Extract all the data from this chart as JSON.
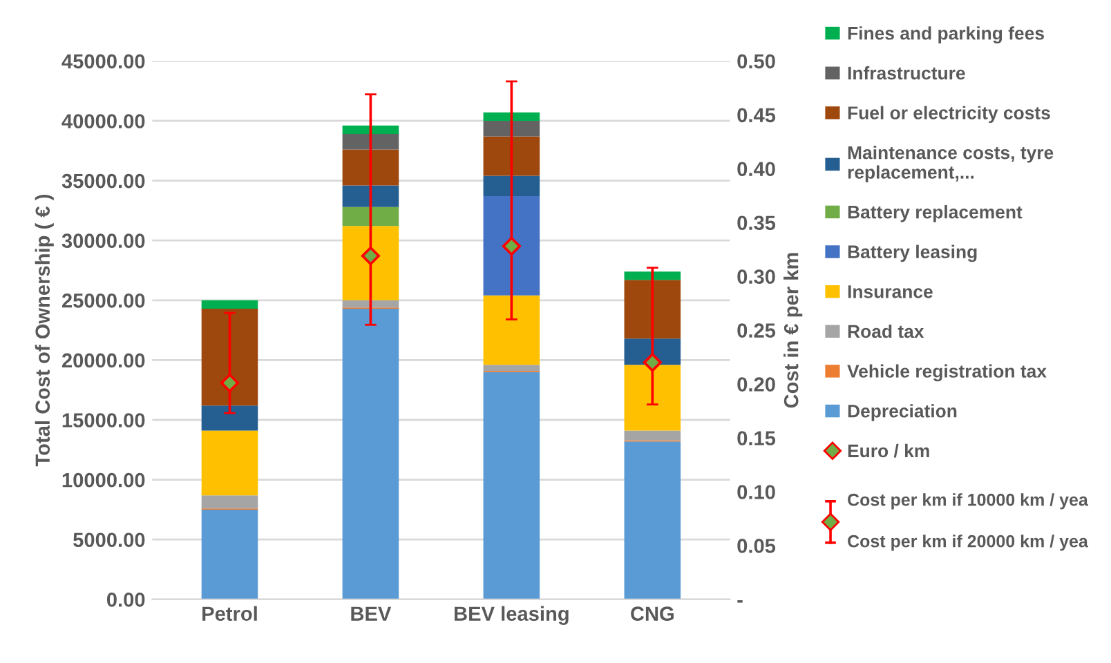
{
  "chart_data": {
    "type": "bar",
    "stacked": true,
    "categories": [
      "Petrol",
      "BEV",
      "BEV leasing",
      "CNG"
    ],
    "ylabel": "Total Cost of Ownership ( € )",
    "y2label": "Cost in € per km",
    "ylim": [
      0,
      45000
    ],
    "yticks": [
      {
        "value": 0,
        "label": "0.00"
      },
      {
        "value": 5000,
        "label": "5000.00"
      },
      {
        "value": 10000,
        "label": "10000.00"
      },
      {
        "value": 15000,
        "label": "15000.00"
      },
      {
        "value": 20000,
        "label": "20000.00"
      },
      {
        "value": 25000,
        "label": "25000.00"
      },
      {
        "value": 30000,
        "label": "30000.00"
      },
      {
        "value": 35000,
        "label": "35000.00"
      },
      {
        "value": 40000,
        "label": "40000.00"
      },
      {
        "value": 45000,
        "label": "45000.00"
      }
    ],
    "y2lim": [
      0,
      0.5
    ],
    "y2ticks": [
      {
        "value": 0,
        "label": "-"
      },
      {
        "value": 0.05,
        "label": "0.05"
      },
      {
        "value": 0.1,
        "label": "0.10"
      },
      {
        "value": 0.15,
        "label": "0.15"
      },
      {
        "value": 0.2,
        "label": "0.20"
      },
      {
        "value": 0.25,
        "label": "0.25"
      },
      {
        "value": 0.3,
        "label": "0.30"
      },
      {
        "value": 0.35,
        "label": "0.35"
      },
      {
        "value": 0.4,
        "label": "0.40"
      },
      {
        "value": 0.45,
        "label": "0.45"
      },
      {
        "value": 0.5,
        "label": "0.50"
      }
    ],
    "grid": "y",
    "legend": "right",
    "series": [
      {
        "name": "Depreciation",
        "color": "#5b9bd5",
        "values": [
          7500,
          24300,
          19000,
          13200
        ]
      },
      {
        "name": "Vehicle registration tax",
        "color": "#ed7d31",
        "values": [
          100,
          100,
          100,
          100
        ]
      },
      {
        "name": "Road tax",
        "color": "#a5a5a5",
        "values": [
          1100,
          600,
          500,
          800
        ]
      },
      {
        "name": "Insurance",
        "color": "#ffc000",
        "values": [
          5400,
          6200,
          5800,
          5500
        ]
      },
      {
        "name": "Battery leasing",
        "color": "#4472c4",
        "values": [
          0,
          0,
          8300,
          0
        ]
      },
      {
        "name": "Battery replacement",
        "color": "#70ad47",
        "values": [
          0,
          1600,
          0,
          0
        ]
      },
      {
        "name": "Maintenance costs, tyre replacement,...",
        "color": "#255e91",
        "values": [
          2100,
          1800,
          1700,
          2200
        ]
      },
      {
        "name": "Fuel or electricity costs",
        "color": "#9e480e",
        "values": [
          8100,
          3000,
          3300,
          4900
        ]
      },
      {
        "name": "Infrastructure",
        "color": "#636363",
        "values": [
          0,
          1300,
          1300,
          0
        ]
      },
      {
        "name": "Fines and parking fees",
        "color": "#00b050",
        "values": [
          700,
          700,
          700,
          700
        ]
      },
      {
        "name": "Euro / km",
        "type": "scatter",
        "axis": "y2",
        "marker": "diamond",
        "color": "#70ad47",
        "values": [
          0.201,
          0.319,
          0.328,
          0.22
        ],
        "errors": [
          [
            0.173,
            0.266
          ],
          [
            0.255,
            0.469
          ],
          [
            0.26,
            0.481
          ],
          [
            0.181,
            0.308
          ]
        ]
      }
    ],
    "annotations": [
      "Cost per km if 10000 km / yea",
      "Cost per km if 20000 km / yea"
    ]
  }
}
